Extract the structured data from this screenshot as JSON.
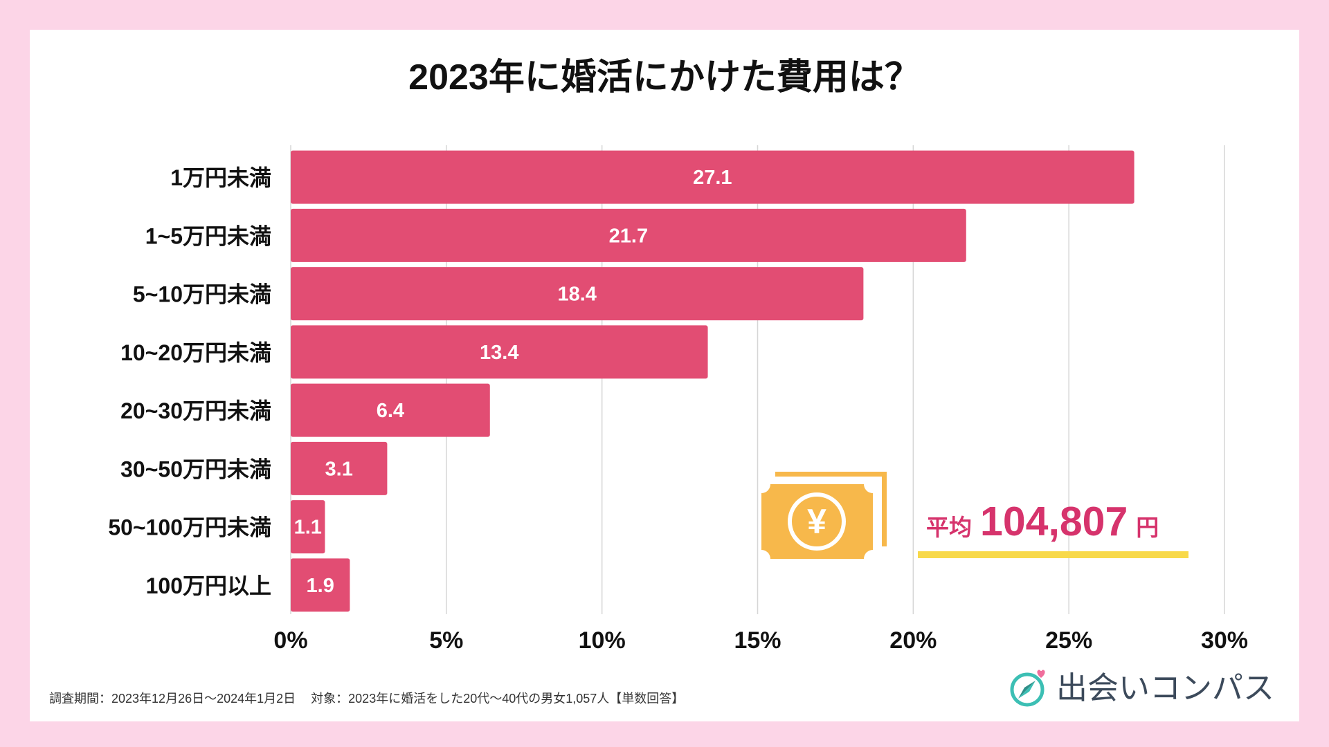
{
  "chart_data": {
    "type": "bar",
    "title": "2023年に婚活にかけた費用は？",
    "categories": [
      "1万円未満",
      "1~5万円未満",
      "5~10万円未満",
      "10~20万円未満",
      "20~30万円未満",
      "30~50万円未満",
      "50~100万円未満",
      "100万円以上"
    ],
    "values": [
      27.1,
      21.7,
      18.4,
      13.4,
      6.4,
      3.1,
      1.1,
      1.9
    ],
    "xlabel": "",
    "ylabel": "",
    "xlim": [
      0,
      30
    ],
    "xticks": [
      0,
      5,
      10,
      15,
      20,
      25,
      30
    ],
    "xtick_labels": [
      "0%",
      "5%",
      "10%",
      "15%",
      "20%",
      "25%",
      "30%"
    ],
    "grid": true,
    "bar_color": "#e24d73"
  },
  "average": {
    "label": "平均",
    "value": "104,807",
    "unit": "円"
  },
  "icons": {
    "money": "money-bill-icon",
    "yen_symbol": "¥"
  },
  "footer": {
    "survey_period": "調査期間：2023年12月26日〜2024年1月2日",
    "survey_target": "対象：2023年に婚活をした20代〜40代の男女1,057人【単数回答】"
  },
  "logo": {
    "icon": "compass-heart-icon",
    "text": "出会いコンパス"
  },
  "colors": {
    "background": "#fcd5e7",
    "accent": "#d6336c",
    "bar": "#e24d73",
    "money": "#f7b84b",
    "underline": "#f8d94a",
    "logo_teal": "#3cbfb4"
  }
}
